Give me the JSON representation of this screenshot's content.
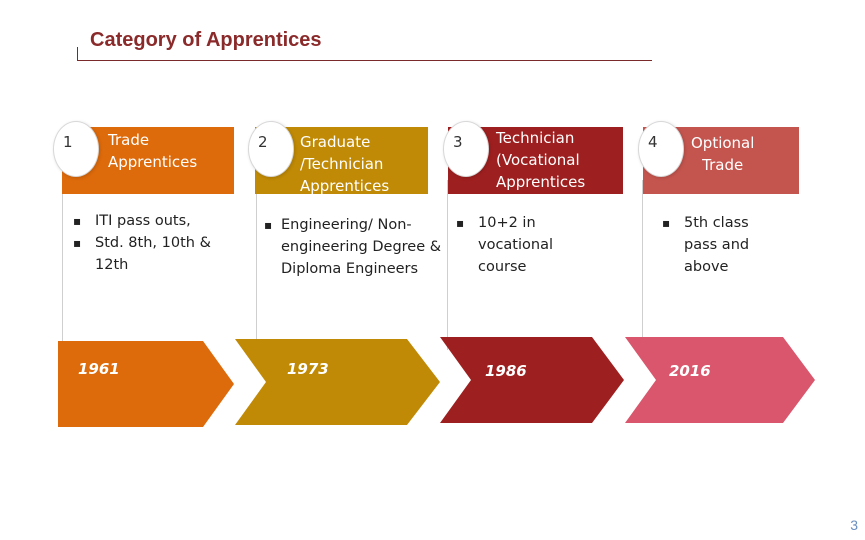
{
  "title": "Category of Apprentices",
  "page_number": "3",
  "colors": {
    "trade": "#dd6a0b",
    "graduate": "#c08a06",
    "technician": "#9e1f1f",
    "optional": "#c4554e",
    "arrow_optional": "#d9566c"
  },
  "categories": [
    {
      "number": "1",
      "label_lines": [
        "Trade",
        "Apprentices"
      ],
      "bullets": [
        "ITI pass outs,",
        "Std. 8th, 10th  &\n12th"
      ],
      "year": "1961"
    },
    {
      "number": "2",
      "label_lines": [
        "Graduate",
        "/Technician",
        "Apprentices"
      ],
      "bullets": [
        "Engineering/ Non-\nengineering Degree &\nDiploma Engineers"
      ],
      "year": "1973"
    },
    {
      "number": "3",
      "label_lines": [
        "Technician",
        "(Vocational",
        "Apprentices"
      ],
      "bullets": [
        "10+2 in\nvocational\ncourse"
      ],
      "year": "1986"
    },
    {
      "number": "4",
      "label_lines": [
        "Optional",
        "Trade"
      ],
      "bullets": [
        "5th class\npass and\nabove"
      ],
      "year": "2016"
    }
  ]
}
